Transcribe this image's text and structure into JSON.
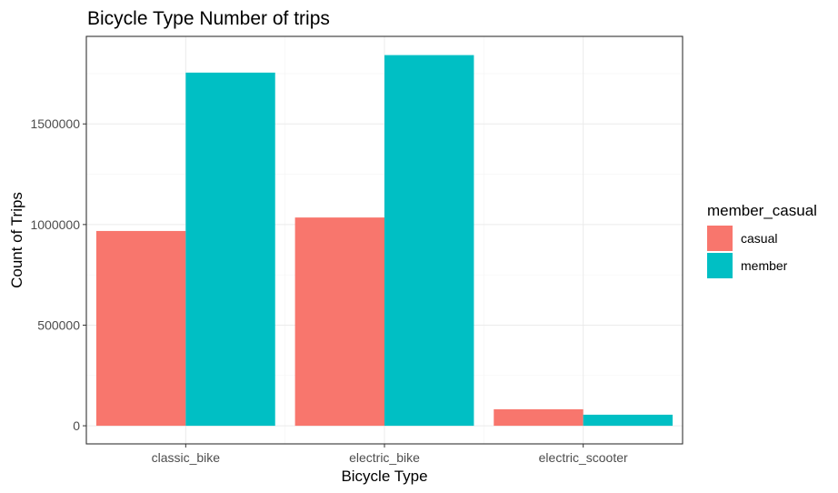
{
  "chart_data": {
    "type": "bar",
    "title": "Bicycle Type Number of trips",
    "xlabel": "Bicycle Type",
    "ylabel": "Count of Trips",
    "categories": [
      "classic_bike",
      "electric_bike",
      "electric_scooter"
    ],
    "series": [
      {
        "name": "casual",
        "values": [
          968000,
          1035000,
          82000
        ]
      },
      {
        "name": "member",
        "values": [
          1755000,
          1842000,
          55000
        ]
      }
    ],
    "ylim": [
      -90000,
      1935000
    ],
    "yticks": [
      0,
      500000,
      1000000,
      1500000
    ],
    "ytick_labels": [
      "0",
      "500000",
      "1000000",
      "1500000"
    ],
    "grid": true,
    "legend": {
      "title": "member_casual",
      "position": "right"
    },
    "colors": {
      "casual": "#F8766D",
      "member": "#00BFC4"
    }
  }
}
